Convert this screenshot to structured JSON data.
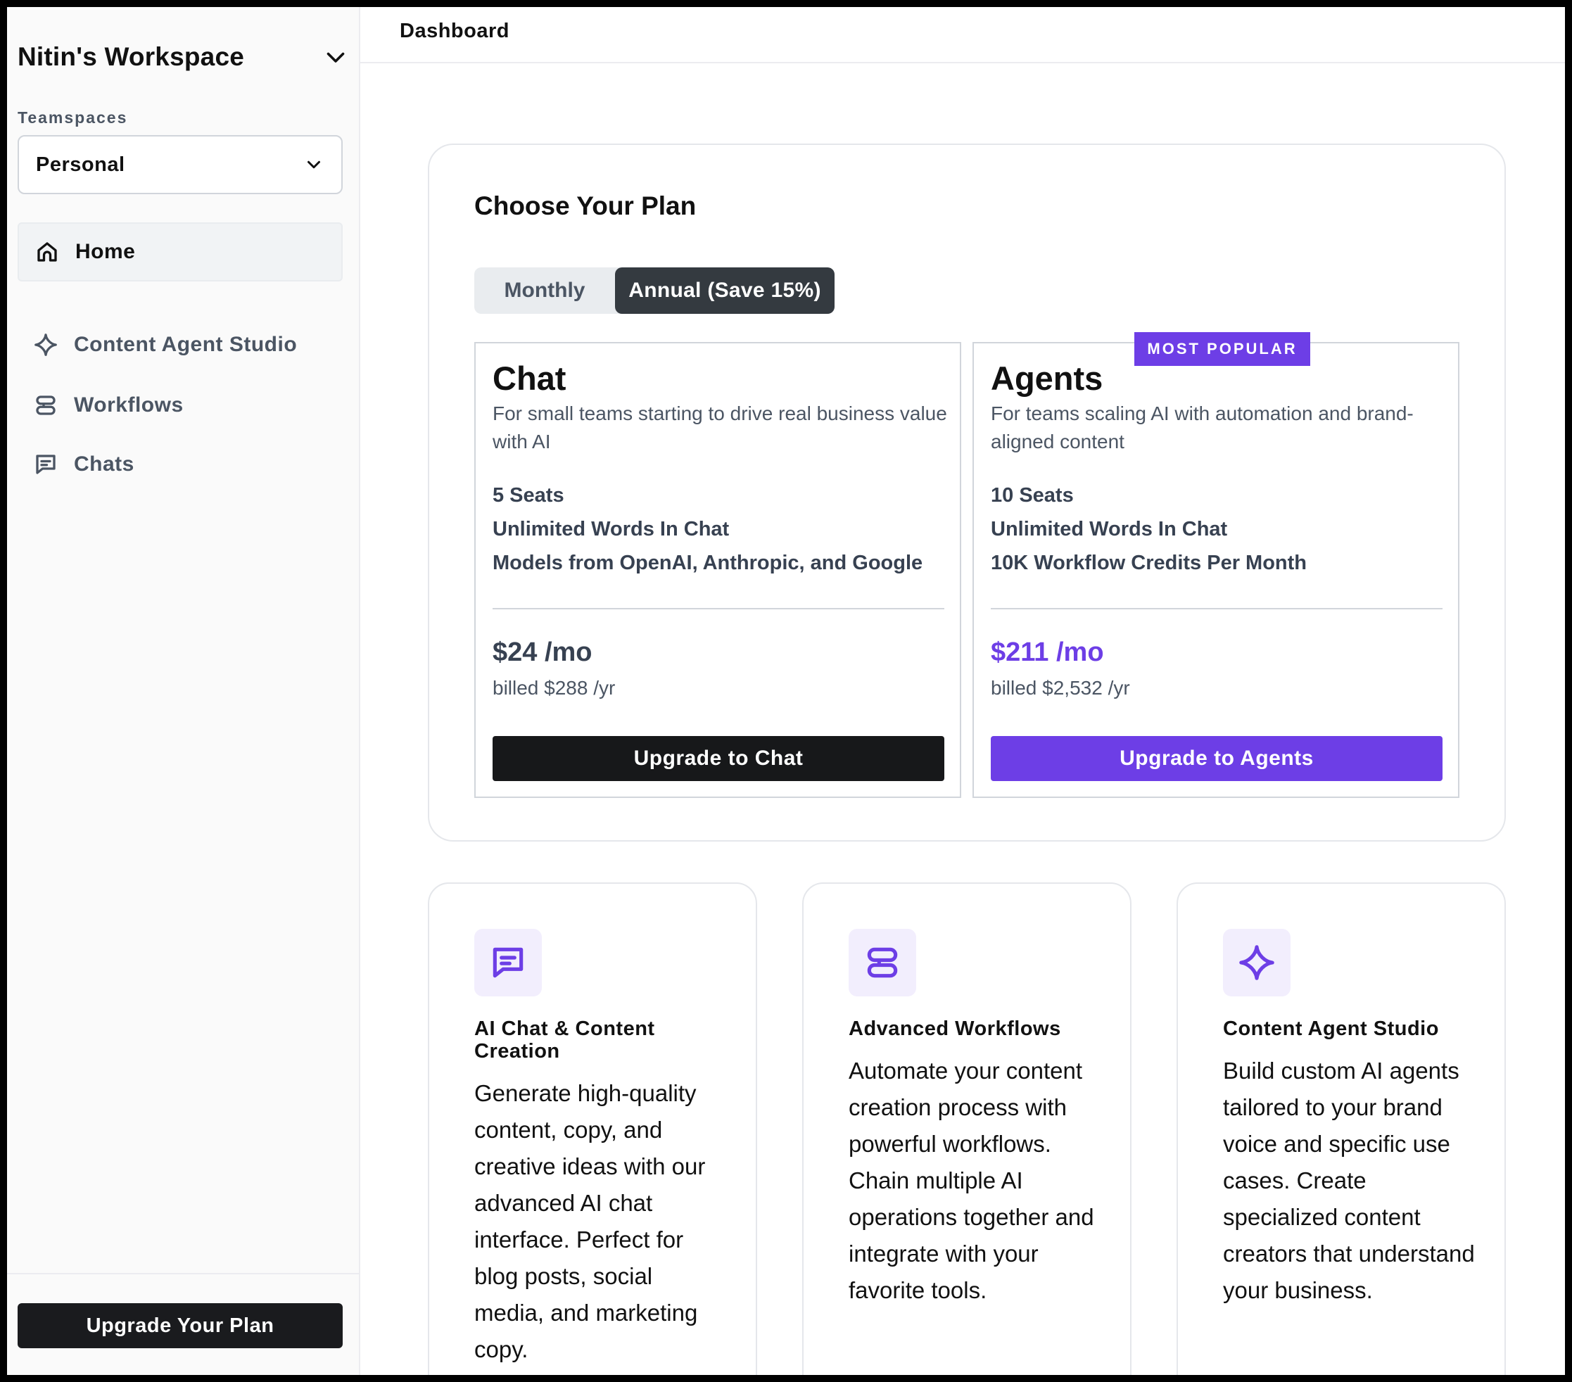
{
  "sidebar": {
    "workspace_name": "Nitin's Workspace",
    "teamspaces_label": "Teamspaces",
    "teamspace_selected": "Personal",
    "nav": {
      "home": "Home",
      "content_agent_studio": "Content Agent Studio",
      "workflows": "Workflows",
      "chats": "Chats"
    },
    "upgrade_button": "Upgrade Your Plan"
  },
  "header": {
    "title": "Dashboard"
  },
  "plans": {
    "heading": "Choose Your Plan",
    "billing_toggle": {
      "monthly": "Monthly",
      "annual": "Annual (Save 15%)",
      "selected": "annual"
    },
    "tiers": [
      {
        "name": "Chat",
        "description": "For small teams starting to drive real business value with AI",
        "features": [
          "5 Seats",
          "Unlimited Words In Chat",
          "Models from OpenAI, Anthropic, and Google"
        ],
        "price": "$24 /mo",
        "billed": "billed $288 /yr",
        "button": "Upgrade to Chat"
      },
      {
        "name": "Agents",
        "badge": "MOST POPULAR",
        "description": "For teams scaling AI with automation and brand-aligned content",
        "features": [
          "10 Seats",
          "Unlimited Words In Chat",
          "10K Workflow Credits Per Month"
        ],
        "price": "$211 /mo",
        "billed": "billed $2,532 /yr",
        "button": "Upgrade to Agents"
      }
    ]
  },
  "features": [
    {
      "icon": "chat-icon",
      "title": "AI Chat & Content Creation",
      "description": "Generate high-quality content, copy, and creative ideas with our advanced AI chat interface. Perfect for blog posts, social media, and marketing copy."
    },
    {
      "icon": "workflow-icon",
      "title": "Advanced Workflows",
      "description": "Automate your content creation process with powerful workflows. Chain multiple AI operations together and integrate with your favorite tools."
    },
    {
      "icon": "sparkle-icon",
      "title": "Content Agent Studio",
      "description": "Build custom AI agents tailored to your brand voice and specific use cases. Create specialized content creators that understand your business."
    }
  ],
  "colors": {
    "accent": "#6d3ee6",
    "dark": "#17181a",
    "muted_text": "#4b5563",
    "icon_bg": "#f2eefd"
  }
}
